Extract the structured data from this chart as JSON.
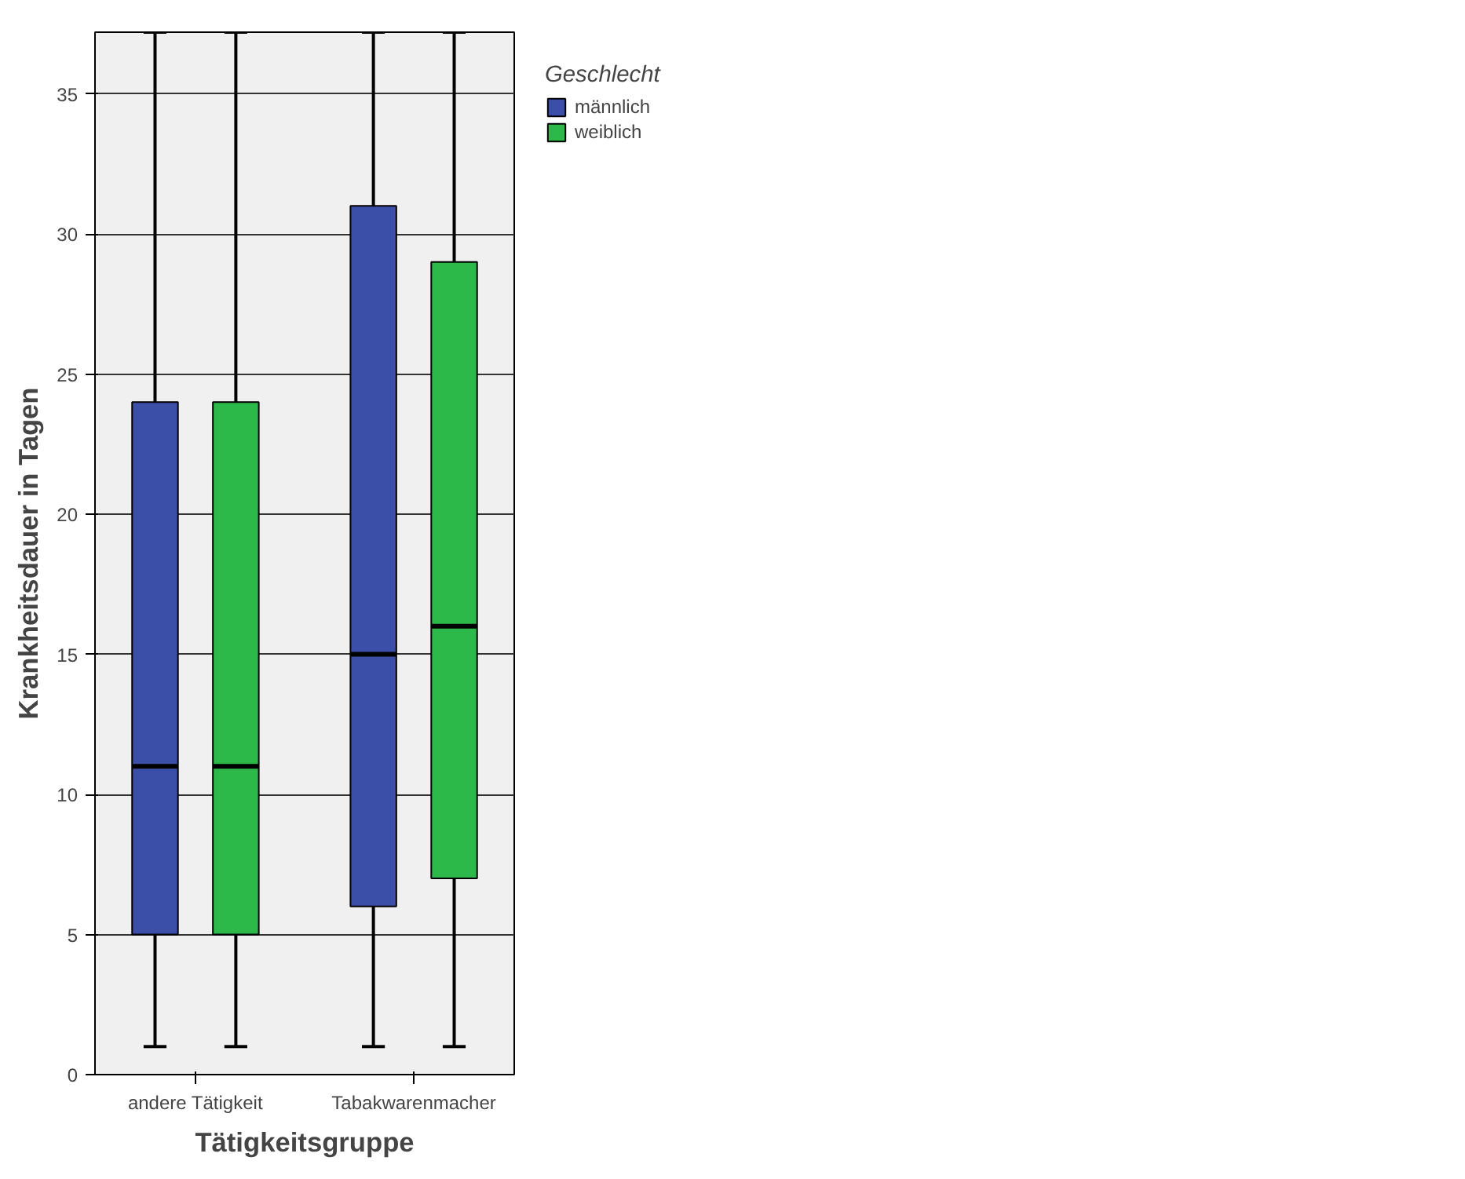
{
  "chart_data": {
    "type": "box",
    "xlabel": "Tätigkeitsgruppe",
    "ylabel": "Krankheitsdauer in Tagen",
    "legend_title": "Geschlecht",
    "legend": "top right",
    "grid": "y",
    "categories": [
      "andere Tätigkeit",
      "Tabakwarenmacher"
    ],
    "ylim": [
      0,
      37.2
    ],
    "yticks": [
      0,
      5,
      10,
      15,
      20,
      25,
      30,
      35
    ],
    "series": [
      {
        "name": "männlich",
        "color": "#3b4fa8",
        "boxes": [
          {
            "low": 1,
            "q1": 5,
            "median": 11,
            "q3": 24,
            "high": 37.2
          },
          {
            "low": 1,
            "q1": 6,
            "median": 15,
            "q3": 31,
            "high": 37.2
          }
        ]
      },
      {
        "name": "weiblich",
        "color": "#2db84a",
        "boxes": [
          {
            "low": 1,
            "q1": 5,
            "median": 11,
            "q3": 24,
            "high": 37.2
          },
          {
            "low": 1,
            "q1": 7,
            "median": 16,
            "q3": 29,
            "high": 37.2
          }
        ]
      }
    ]
  }
}
